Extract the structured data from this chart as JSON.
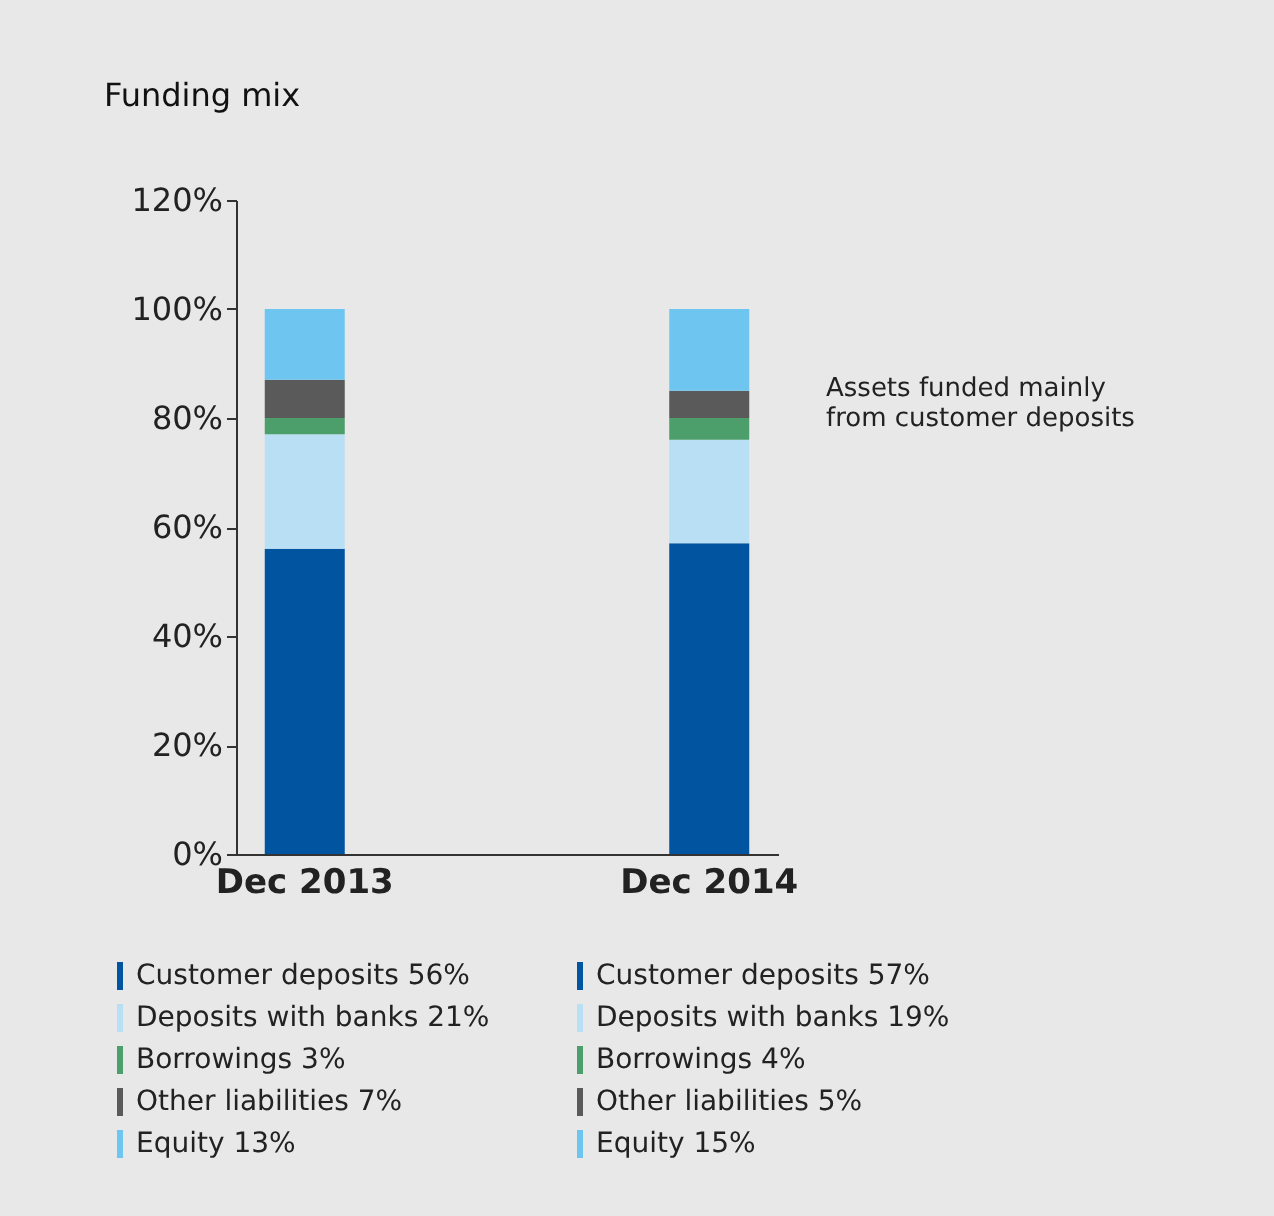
{
  "chart_data": {
    "type": "bar",
    "title": "Funding mix",
    "stacked": true,
    "categories": [
      "Dec 2013",
      "Dec 2014"
    ],
    "series": [
      {
        "name": "Customer deposits",
        "color": "#0054a0",
        "values": [
          56,
          57
        ],
        "value_labels": [
          "56%",
          "57%"
        ]
      },
      {
        "name": "Deposits with banks",
        "color": "#b9dff5",
        "values": [
          21,
          19
        ],
        "value_labels": [
          "21%",
          "19%"
        ]
      },
      {
        "name": "Borrowings",
        "color": "#4c9e6a",
        "values": [
          3,
          4
        ],
        "value_labels": [
          "3%",
          "4%"
        ]
      },
      {
        "name": "Other liabilities",
        "color": "#5a5a5a",
        "values": [
          7,
          5
        ],
        "value_labels": [
          "7%",
          "5%"
        ]
      },
      {
        "name": "Equity",
        "color": "#6ec6f0",
        "values": [
          13,
          15
        ],
        "value_labels": [
          "13%",
          "15%"
        ]
      }
    ],
    "ylim": [
      0,
      120
    ],
    "yticks": [
      {
        "value": 0,
        "label": "0%"
      },
      {
        "value": 20,
        "label": "20%"
      },
      {
        "value": 40,
        "label": "40%"
      },
      {
        "value": 60,
        "label": "60%"
      },
      {
        "value": 80,
        "label": "80%"
      },
      {
        "value": 100,
        "label": "100%"
      },
      {
        "value": 120,
        "label": "120%"
      }
    ],
    "annotations": [
      "Assets funded mainly\nfrom customer deposits"
    ],
    "grid": false
  }
}
